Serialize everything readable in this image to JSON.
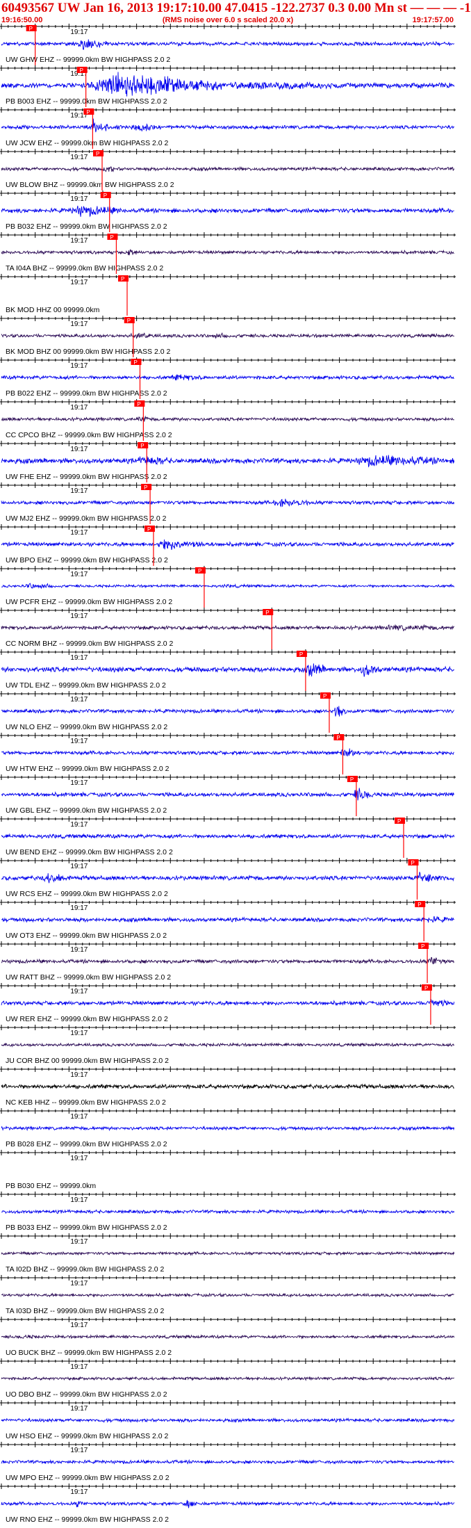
{
  "header": {
    "title": "60493567 UW Jan 16, 2013 19:17:10.00   47.0415 -122.2737  0.3 0.00 Mn st — — —  -1",
    "start_time": "19:16:50.00",
    "note": "(RMS noise over 6.0 s scaled 20.0 x)",
    "end_time": "19:17:57.00"
  },
  "chart_data": {
    "type": "line",
    "x_range_seconds": [
      0,
      67
    ],
    "time_tick_label": "19:17",
    "time_tick_seconds": 10,
    "pick_label": "P",
    "pick_color": "#ff0000",
    "colors": {
      "blue_trace": "#0000ee",
      "dark_trace": "#2a0a55",
      "black_trace": "#000000"
    },
    "traces": [
      {
        "label": "UW GHW EHZ -- 99999.0km BW  HIGHPASS  2.0  2",
        "color": "blue",
        "amp": 0.5,
        "pick_s": 5.0,
        "events": [
          [
            11,
            16,
            3.2
          ],
          [
            18,
            22,
            1.4
          ]
        ]
      },
      {
        "label": "PB B003 EHZ -- 99999.0km BW  HIGHPASS  2.0  2",
        "color": "blue",
        "amp": 0.7,
        "pick_s": 12.5,
        "events": [
          [
            13,
            33,
            5.0
          ],
          [
            33,
            50,
            1.8
          ]
        ]
      },
      {
        "label": "UW JCW EHZ -- 99999.0km BW  HIGHPASS  2.0  2",
        "color": "blue",
        "amp": 0.5,
        "pick_s": 13.5,
        "events": [
          [
            13,
            16,
            4.5
          ],
          [
            19,
            23,
            3.0
          ]
        ]
      },
      {
        "label": "UW BLOW BHZ -- 99999.0km BW  HIGHPASS  2.0  2",
        "color": "dark",
        "amp": 0.45,
        "pick_s": 14.9,
        "events": [
          [
            15,
            17,
            2.5
          ]
        ]
      },
      {
        "label": "PB B032 EHZ -- 99999.0km BW  HIGHPASS  2.0  2",
        "color": "blue",
        "amp": 0.6,
        "pick_s": 16.0,
        "events": [
          [
            10,
            18,
            2.8
          ]
        ]
      },
      {
        "label": "TA I04A BHZ -- 99999.0km BW  HIGHPASS  2.0  2",
        "color": "dark",
        "amp": 0.45,
        "pick_s": 17.0,
        "events": [
          [
            18,
            20,
            2.5
          ]
        ]
      },
      {
        "label": "BK MOD HHZ 00 99999.0km",
        "color": "none",
        "amp": 0.0,
        "pick_s": 18.6,
        "events": []
      },
      {
        "label": "BK MOD BHZ 00 99999.0km BW  HIGHPASS  2.0  2",
        "color": "dark",
        "amp": 0.45,
        "pick_s": 19.5,
        "events": [
          [
            19,
            23,
            2.2
          ],
          [
            31,
            35,
            1.6
          ]
        ]
      },
      {
        "label": "PB B022 EHZ -- 99999.0km BW  HIGHPASS  2.0  2",
        "color": "blue",
        "amp": 0.5,
        "pick_s": 20.5,
        "events": [
          [
            25,
            30,
            2.0
          ]
        ]
      },
      {
        "label": "CC CPCO BHZ -- 99999.0km BW  HIGHPASS  2.0  2",
        "color": "dark",
        "amp": 0.45,
        "pick_s": 21.0,
        "events": [
          [
            20,
            22,
            2.0
          ]
        ]
      },
      {
        "label": "UW FHE EHZ -- 99999.0km BW  HIGHPASS  2.0  2",
        "color": "blue",
        "amp": 0.7,
        "pick_s": 21.5,
        "events": [
          [
            20,
            25,
            2.2
          ],
          [
            52,
            66,
            2.4
          ]
        ]
      },
      {
        "label": "UW MJ2 EHZ -- 99999.0km BW  HIGHPASS  2.0  2",
        "color": "blue",
        "amp": 0.5,
        "pick_s": 22.0,
        "events": [
          [
            40,
            46,
            2.5
          ]
        ]
      },
      {
        "label": "UW BPO EHZ -- 99999.0km BW  HIGHPASS  2.0  2",
        "color": "blue",
        "amp": 0.55,
        "pick_s": 22.5,
        "events": [
          [
            23,
            30,
            3.2
          ]
        ]
      },
      {
        "label": "UW PCFR EHZ -- 99999.0km BW  HIGHPASS  2.0  2",
        "color": "blue",
        "amp": 0.35,
        "pick_s": 30.0,
        "events": [
          [
            3,
            9,
            2.2
          ],
          [
            32,
            36,
            1.4
          ]
        ]
      },
      {
        "label": "CC NORM BHZ -- 99999.0km BW  HIGHPASS  2.0  2",
        "color": "dark",
        "amp": 0.5,
        "pick_s": 40.0,
        "events": [
          [
            56,
            66,
            1.8
          ]
        ]
      },
      {
        "label": "UW TDL EHZ -- 99999.0km BW  HIGHPASS  2.0  2",
        "color": "blue",
        "amp": 0.7,
        "pick_s": 45.0,
        "events": [
          [
            45,
            48,
            3.2
          ],
          [
            53,
            56,
            3.0
          ]
        ]
      },
      {
        "label": "UW NLO EHZ -- 99999.0km BW  HIGHPASS  2.0  2",
        "color": "blue",
        "amp": 0.5,
        "pick_s": 48.5,
        "events": [
          [
            49,
            51,
            4.5
          ]
        ]
      },
      {
        "label": "UW HTW EHZ -- 99999.0km BW  HIGHPASS  2.0  2",
        "color": "blue",
        "amp": 0.5,
        "pick_s": 50.5,
        "events": [
          [
            50,
            53,
            3.0
          ]
        ]
      },
      {
        "label": "UW GBL EHZ -- 99999.0km BW  HIGHPASS  2.0  2",
        "color": "blue",
        "amp": 0.55,
        "pick_s": 52.5,
        "events": [
          [
            52,
            55,
            3.5
          ]
        ]
      },
      {
        "label": "UW BEND EHZ -- 99999.0km BW  HIGHPASS  2.0  2",
        "color": "blue",
        "amp": 0.55,
        "pick_s": 59.5,
        "events": []
      },
      {
        "label": "UW RCS EHZ -- 99999.0km BW  HIGHPASS  2.0  2",
        "color": "blue",
        "amp": 0.6,
        "pick_s": 61.5,
        "events": [
          [
            6,
            10,
            2.6
          ],
          [
            61,
            66,
            3.0
          ]
        ]
      },
      {
        "label": "UW OT3 EHZ -- 99999.0km BW  HIGHPASS  2.0  2",
        "color": "blue",
        "amp": 0.55,
        "pick_s": 62.5,
        "events": [
          [
            62,
            66,
            2.0
          ]
        ]
      },
      {
        "label": "UW RATT BHZ -- 99999.0km BW  HIGHPASS  2.0  2",
        "color": "dark",
        "amp": 0.5,
        "pick_s": 63.0,
        "events": [
          [
            63,
            66,
            3.0
          ]
        ]
      },
      {
        "label": "UW RER EHZ -- 99999.0km BW  HIGHPASS  2.0  2",
        "color": "blue",
        "amp": 0.55,
        "pick_s": 63.5,
        "events": [
          [
            63,
            66,
            2.8
          ]
        ]
      },
      {
        "label": "JU COR BHZ 00 99999.0km BW  HIGHPASS  2.0  2",
        "color": "dark",
        "amp": 0.4,
        "pick_s": null,
        "events": []
      },
      {
        "label": "NC KEB HHZ -- 99999.0km BW  HIGHPASS  2.0  2",
        "color": "black",
        "amp": 0.6,
        "pick_s": null,
        "events": []
      },
      {
        "label": "PB B028 EHZ -- 99999.0km BW  HIGHPASS  2.0  2",
        "color": "blue",
        "amp": 0.45,
        "pick_s": null,
        "events": []
      },
      {
        "label": "PB B030 EHZ -- 99999.0km",
        "color": "none",
        "amp": 0.0,
        "pick_s": null,
        "events": []
      },
      {
        "label": "PB B033 EHZ -- 99999.0km BW  HIGHPASS  2.0  2",
        "color": "blue",
        "amp": 0.45,
        "pick_s": null,
        "events": []
      },
      {
        "label": "TA I02D BHZ -- 99999.0km BW  HIGHPASS  2.0  2",
        "color": "dark",
        "amp": 0.4,
        "pick_s": null,
        "events": []
      },
      {
        "label": "TA I03D BHZ -- 99999.0km BW  HIGHPASS  2.0  2",
        "color": "dark",
        "amp": 0.4,
        "pick_s": null,
        "events": []
      },
      {
        "label": "UO BUCK BHZ -- 99999.0km BW  HIGHPASS  2.0  2",
        "color": "dark",
        "amp": 0.4,
        "pick_s": null,
        "events": [
          [
            2,
            6,
            1.5
          ]
        ]
      },
      {
        "label": "UO DBO BHZ -- 99999.0km BW  HIGHPASS  2.0  2",
        "color": "dark",
        "amp": 0.4,
        "pick_s": null,
        "events": []
      },
      {
        "label": "UW HSO EHZ -- 99999.0km BW  HIGHPASS  2.0  2",
        "color": "blue",
        "amp": 0.45,
        "pick_s": null,
        "events": []
      },
      {
        "label": "UW MPO EHZ -- 99999.0km BW  HIGHPASS  2.0  2",
        "color": "blue",
        "amp": 0.45,
        "pick_s": null,
        "events": []
      },
      {
        "label": "UW RNO EHZ -- 99999.0km BW  HIGHPASS  2.0  2",
        "color": "blue",
        "amp": 0.45,
        "pick_s": null,
        "events": [
          [
            11,
            12,
            3.0
          ],
          [
            27,
            29,
            3.5
          ]
        ]
      }
    ]
  }
}
